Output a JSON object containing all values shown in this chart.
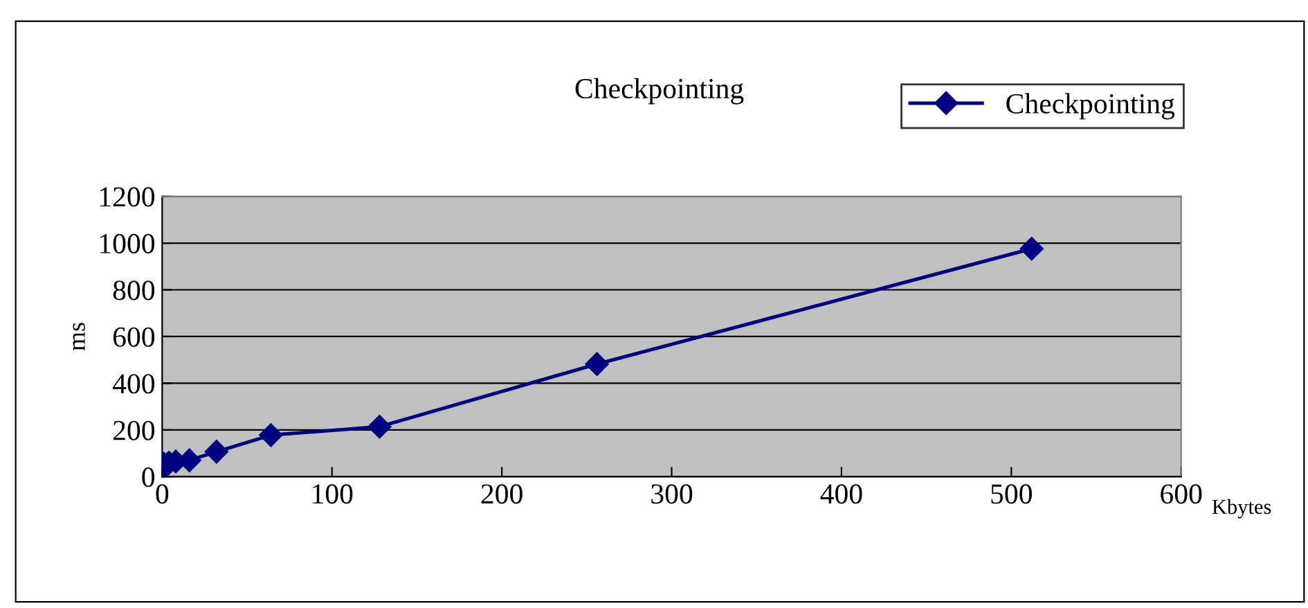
{
  "chart_data": {
    "type": "line",
    "title": "Checkpointing",
    "xlabel": "Kbytes",
    "ylabel": "ms",
    "x": [
      1,
      2,
      4,
      8,
      16,
      32,
      64,
      128,
      256,
      512
    ],
    "series": [
      {
        "name": "Checkpointing",
        "color": "#000080",
        "values": [
          55,
          45,
          60,
          65,
          70,
          107,
          178,
          214,
          482,
          976
        ]
      }
    ],
    "xlim": [
      0,
      600
    ],
    "xticks": [
      0,
      100,
      200,
      300,
      400,
      500,
      600
    ],
    "ylim": [
      0,
      1200
    ],
    "yticks": [
      0,
      200,
      400,
      600,
      800,
      1000,
      1200
    ],
    "grid": "y",
    "legend": "top right",
    "marker": "diamond",
    "line_style": "solid"
  }
}
